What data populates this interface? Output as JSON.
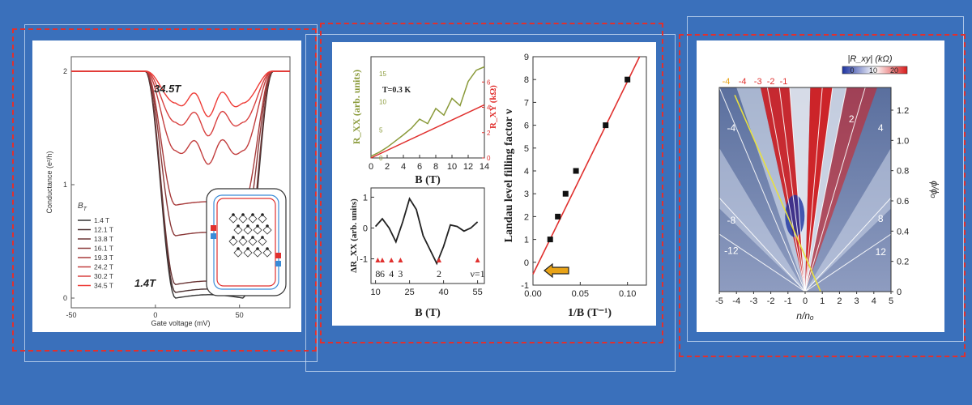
{
  "colors": {
    "background": "#3a70bb",
    "frame_line": "#d5e2f5",
    "dotted_red": "#e0302e",
    "red": "#e0302e",
    "dark": "#222222",
    "green": "#8a9a3a",
    "orange": "#e8a317"
  },
  "panel1": {
    "chart_data": {
      "type": "line",
      "title": "",
      "xlabel": "Gate voltage (mV)",
      "ylabel": "Conductance (e²/h)",
      "xlim": [
        -50,
        80
      ],
      "ylim": [
        0,
        2
      ],
      "x_ticks": [
        "-50",
        "0",
        "50"
      ],
      "y_ticks": [
        "0",
        "1",
        "2"
      ],
      "legend_title": "B",
      "legend_title_sub": "T",
      "legend": [
        "1.4 T",
        "12.1 T",
        "13.8 T",
        "16.1 T",
        "19.3 T",
        "24.2 T",
        "30.2 T",
        "34.5 T"
      ],
      "legend_colors": [
        "#333333",
        "#4a3030",
        "#6a3535",
        "#8a3838",
        "#a83b3b",
        "#c23e3e",
        "#d8403f",
        "#ee3b36"
      ],
      "plateau_min": [
        0.0,
        0.05,
        0.12,
        0.55,
        0.82,
        1.3,
        1.55,
        1.72
      ],
      "annotations": [
        "34.5T",
        "1.4T"
      ]
    }
  },
  "panel2": {
    "top_chart": {
      "type": "line",
      "xlabel": "B (T)",
      "ylabel_left": "R_XX (arb. units)",
      "ylabel_right": "R_XY (kΩ)",
      "x_ticks": [
        "0",
        "2",
        "4",
        "6",
        "8",
        "10",
        "12",
        "14"
      ],
      "y_left_ticks": [
        "0",
        "5",
        "10",
        "15"
      ],
      "y_right_ticks": [
        "0",
        "2",
        "4",
        "6"
      ],
      "xlim": [
        0,
        14
      ],
      "ylim_left": [
        0,
        18
      ],
      "ylim_right": [
        0,
        8
      ],
      "annotation": "T=0.3 K",
      "series": [
        {
          "name": "R_XX",
          "x": [
            0,
            1,
            2,
            3,
            4,
            5,
            6,
            7,
            8,
            9,
            10,
            11,
            12,
            13,
            14
          ],
          "y": [
            0.3,
            1.0,
            1.9,
            3.0,
            4.1,
            5.3,
            6.9,
            6.1,
            8.8,
            7.6,
            10.6,
            9.3,
            13.6,
            15.6,
            16.2
          ]
        },
        {
          "name": "R_XY",
          "x": [
            0,
            14
          ],
          "y": [
            0,
            4.2
          ]
        }
      ]
    },
    "bottom_chart": {
      "type": "line",
      "xlabel": "B (T)",
      "ylabel": "ΔR_XX (arb. units)",
      "x_ticks": [
        "10",
        "25",
        "40",
        "55"
      ],
      "y_ticks": [
        "1",
        "0",
        "-1"
      ],
      "xlim": [
        8,
        58
      ],
      "ylim": [
        -1.8,
        1.3
      ],
      "x": [
        10,
        13,
        16,
        19,
        22,
        25,
        28,
        31,
        34,
        37,
        40,
        43,
        46,
        49,
        52,
        55
      ],
      "y": [
        0.05,
        0.3,
        0.0,
        -0.45,
        0.2,
        0.95,
        0.6,
        -0.25,
        -0.7,
        -1.15,
        -0.6,
        0.1,
        0.05,
        -0.1,
        0.0,
        0.2
      ],
      "filling_labels": [
        "8",
        "6",
        "4",
        "3",
        "2",
        "ν=1"
      ],
      "filling_fields": [
        11,
        13,
        17,
        21,
        38,
        55
      ]
    },
    "right_chart": {
      "type": "scatter",
      "xlabel": "1/B (T⁻¹)",
      "ylabel": "Landau level filling factor ν",
      "x_ticks": [
        "0.00",
        "0.05",
        "0.10"
      ],
      "y_ticks": [
        "-1",
        "0",
        "1",
        "2",
        "3",
        "4",
        "5",
        "6",
        "7",
        "8",
        "9"
      ],
      "xlim": [
        0,
        0.12
      ],
      "ylim": [
        -1,
        9
      ],
      "x": [
        0.0182,
        0.0263,
        0.0345,
        0.0455,
        0.0769,
        0.1
      ],
      "y": [
        1,
        2,
        3,
        4,
        6,
        8
      ],
      "fit_line": {
        "x": [
          0.0,
          0.1128
        ],
        "y": [
          -0.52,
          9
        ]
      }
    }
  },
  "panel3": {
    "chart_data": {
      "type": "heatmap",
      "xlabel": "n/nₒ",
      "ylabel": "ϕ/ϕₒ",
      "colorbar_label": "|R_xy| (kΩ)",
      "colorbar_ticks": [
        "0",
        "10",
        "20"
      ],
      "x_ticks": [
        "-5",
        "-4",
        "-3",
        "-2",
        "-1",
        "0",
        "1",
        "2",
        "3",
        "4",
        "5"
      ],
      "y_ticks": [
        "0",
        "0.2",
        "0.4",
        "0.6",
        "0.8",
        "1.0",
        "1.2"
      ],
      "xlim": [
        -5,
        5
      ],
      "ylim": [
        0,
        1.35
      ],
      "top_labels": [
        "-4",
        "-4",
        "-3",
        "-2",
        "-1"
      ],
      "top_label_x": [
        -4.6,
        -3.65,
        -2.75,
        -2.0,
        -1.25
      ],
      "top_label_colors": [
        "#e8a317",
        "#e0302e",
        "#e0302e",
        "#e0302e",
        "#e0302e"
      ],
      "inside_labels": [
        "-4",
        "2",
        "4",
        "-8",
        "-12",
        "8",
        "12"
      ],
      "inside_label_x": [
        -4.3,
        2.7,
        4.4,
        -4.3,
        -4.3,
        4.4,
        4.4
      ],
      "inside_label_y": [
        1.06,
        1.12,
        1.06,
        0.45,
        0.25,
        0.46,
        0.24
      ]
    }
  }
}
